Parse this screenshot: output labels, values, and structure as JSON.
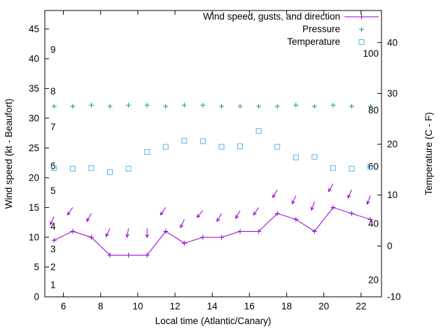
{
  "chart_data": {
    "type": "line",
    "title": "",
    "xlabel": "Local time (Atlantic/Canary)",
    "ylabel_left": "Wind speed (kt - Beaufort)",
    "ylabel_right": "Temperature (C - F)",
    "x_range": [
      5,
      23.1
    ],
    "x_ticks": [
      6,
      8,
      10,
      12,
      14,
      16,
      18,
      20,
      22
    ],
    "y_left_range": [
      0,
      48.1
    ],
    "y_left_ticks": [
      0,
      5,
      10,
      15,
      20,
      25,
      30,
      35,
      40,
      45
    ],
    "y_right_range": [
      -10,
      46.3
    ],
    "y_right_ticks": [
      -10,
      0,
      10,
      20,
      30,
      40
    ],
    "grid": false,
    "legend_position": "top-right-inside",
    "legend": [
      {
        "label": "Wind speed, gusts, and direction",
        "color": "#9400d3",
        "marker": "line-plus"
      },
      {
        "label": "Pressure",
        "color": "#009e73",
        "marker": "plus"
      },
      {
        "label": "Temperature",
        "color": "#56b4e9",
        "marker": "square"
      }
    ],
    "beaufort_scale_labels": [
      {
        "label": "1",
        "kt": 2
      },
      {
        "label": "2",
        "kt": 5
      },
      {
        "label": "3",
        "kt": 8
      },
      {
        "label": "4",
        "kt": 11.8
      },
      {
        "label": "5",
        "kt": 17.8
      },
      {
        "label": "6",
        "kt": 22
      },
      {
        "label": "7",
        "kt": 28.5
      },
      {
        "label": "8",
        "kt": 34.5
      },
      {
        "label": "9",
        "kt": 41.5
      }
    ],
    "fahrenheit_labels": [
      {
        "label": "100",
        "c": 37.8
      },
      {
        "label": "80",
        "c": 26.7
      },
      {
        "label": "60",
        "c": 15.6
      },
      {
        "label": "40",
        "c": 4.4
      },
      {
        "label": "20",
        "c": -6.7
      }
    ],
    "x": [
      5.5,
      6.5,
      7.5,
      8.5,
      9.5,
      10.5,
      11.5,
      12.5,
      13.5,
      14.5,
      15.5,
      16.5,
      17.5,
      18.5,
      19.5,
      20.5,
      21.5,
      22.5
    ],
    "wind_speed_kt": [
      9.5,
      11,
      10,
      7,
      7,
      7,
      11,
      9,
      10,
      10,
      11,
      11,
      14,
      13,
      11,
      15,
      14,
      13
    ],
    "gust_kt": [
      13.5,
      15,
      14,
      11.5,
      11.5,
      11.5,
      15,
      13,
      14.5,
      14,
      14.5,
      15,
      18,
      17,
      16,
      19,
      18,
      17
    ],
    "gust_screen_angle_deg": [
      115,
      125,
      120,
      115,
      100,
      90,
      125,
      115,
      130,
      120,
      120,
      125,
      120,
      115,
      110,
      120,
      115,
      110
    ],
    "pressure_plotted_kt": [
      32,
      32,
      32.2,
      32,
      32.2,
      32.2,
      32,
      32.2,
      32.2,
      32,
      32,
      32,
      32,
      32.2,
      32,
      32.2,
      32,
      32
    ],
    "temperature_c": [
      15.3,
      15.2,
      15.3,
      14.5,
      15.2,
      18.5,
      19.5,
      20.7,
      20.6,
      19.5,
      19.6,
      22.6,
      19.5,
      17.4,
      17.5,
      15.3,
      15.2,
      15.6
    ]
  }
}
